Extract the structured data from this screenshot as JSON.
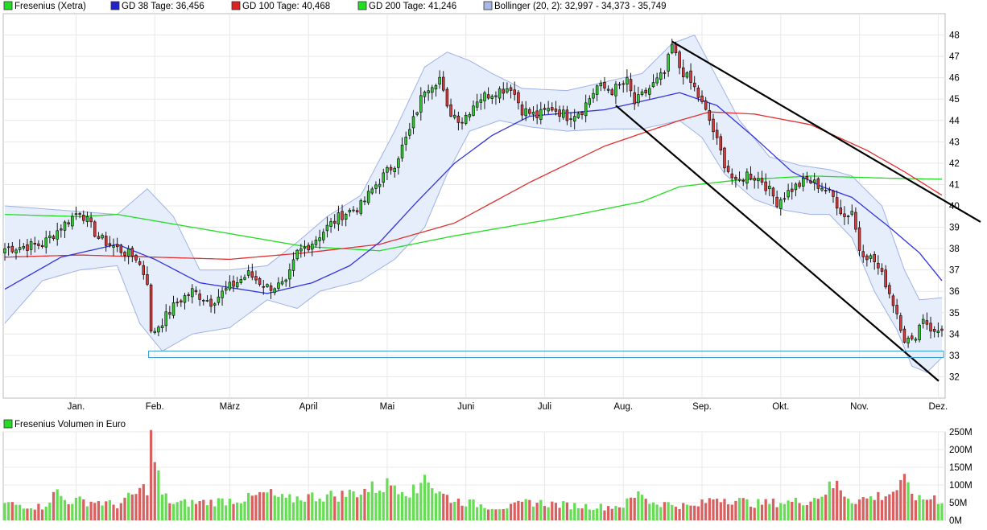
{
  "legend": {
    "price": "Fresenius (Xetra)",
    "gd38": "GD 38 Tage: 36,456",
    "gd100": "GD 100 Tage: 40,468",
    "gd200": "GD 200 Tage: 41,246",
    "bollinger": "Bollinger (20, 2): 32,997 - 34,373 - 35,749",
    "volume": "Fresenius Volumen in Euro"
  },
  "colors": {
    "up": "#2ecc2e",
    "down": "#d93a3a",
    "gd38": "#3333dd",
    "gd100": "#e03030",
    "gd200": "#22dd22",
    "band_fill": "#e6eefb",
    "band_line": "#9fb2e6",
    "support": "#3399cc"
  },
  "chart_data": [
    {
      "type": "candlestick",
      "title": "",
      "x_months": [
        "Jan.",
        "Feb.",
        "März",
        "April",
        "Mai",
        "Juni",
        "Juli",
        "Aug.",
        "Sep.",
        "Okt.",
        "Nov.",
        "Dez."
      ],
      "y_ticks": [
        32,
        33,
        34,
        35,
        36,
        37,
        38,
        39,
        40,
        41,
        42,
        43,
        44,
        45,
        46,
        47,
        48
      ],
      "ylim": [
        31,
        49
      ],
      "series_anchors": {
        "close": [
          [
            0,
            38.0
          ],
          [
            10,
            38.2
          ],
          [
            15,
            39.0
          ],
          [
            20,
            39.8
          ],
          [
            25,
            38.5
          ],
          [
            30,
            38.0
          ],
          [
            35,
            37.6
          ],
          [
            38,
            36.5
          ],
          [
            39,
            34.0
          ],
          [
            42,
            34.6
          ],
          [
            46,
            35.5
          ],
          [
            50,
            36.0
          ],
          [
            55,
            35.5
          ],
          [
            60,
            36.2
          ],
          [
            65,
            36.8
          ],
          [
            70,
            36.2
          ],
          [
            75,
            36.3
          ],
          [
            78,
            37.8
          ],
          [
            82,
            38.3
          ],
          [
            86,
            39.0
          ],
          [
            90,
            39.6
          ],
          [
            95,
            40.0
          ],
          [
            99,
            41.0
          ],
          [
            104,
            42.0
          ],
          [
            108,
            43.5
          ],
          [
            112,
            45.5
          ],
          [
            116,
            46.0
          ],
          [
            118,
            44.5
          ],
          [
            122,
            44.0
          ],
          [
            126,
            45.0
          ],
          [
            130,
            45.3
          ],
          [
            135,
            45.6
          ],
          [
            138,
            44.5
          ],
          [
            142,
            44.2
          ],
          [
            146,
            44.6
          ],
          [
            150,
            44.2
          ],
          [
            154,
            44.5
          ],
          [
            158,
            45.6
          ],
          [
            162,
            45.4
          ],
          [
            166,
            45.8
          ],
          [
            168,
            44.8
          ],
          [
            172,
            45.5
          ],
          [
            176,
            46.2
          ],
          [
            178,
            47.5
          ],
          [
            180,
            46.5
          ],
          [
            184,
            45.5
          ],
          [
            188,
            44.0
          ],
          [
            192,
            42.0
          ],
          [
            195,
            41.0
          ],
          [
            198,
            41.5
          ],
          [
            202,
            41.2
          ],
          [
            206,
            40.2
          ],
          [
            210,
            40.8
          ],
          [
            214,
            41.2
          ],
          [
            218,
            40.9
          ],
          [
            221,
            40.4
          ],
          [
            224,
            39.5
          ],
          [
            226,
            39.8
          ],
          [
            228,
            38.0
          ],
          [
            232,
            37.4
          ],
          [
            235,
            36.4
          ],
          [
            238,
            35.0
          ],
          [
            240,
            33.8
          ],
          [
            242,
            33.6
          ],
          [
            245,
            34.8
          ],
          [
            248,
            34.0
          ],
          [
            250,
            34.3
          ]
        ],
        "gd38": [
          [
            0,
            36.1
          ],
          [
            15,
            37.6
          ],
          [
            30,
            38.2
          ],
          [
            40,
            37.5
          ],
          [
            52,
            36.4
          ],
          [
            70,
            35.9
          ],
          [
            82,
            36.4
          ],
          [
            92,
            37.2
          ],
          [
            100,
            38.3
          ],
          [
            110,
            40.2
          ],
          [
            120,
            42.0
          ],
          [
            130,
            43.3
          ],
          [
            140,
            44.2
          ],
          [
            160,
            44.5
          ],
          [
            175,
            45.1
          ],
          [
            180,
            45.3
          ],
          [
            190,
            44.7
          ],
          [
            200,
            43.2
          ],
          [
            210,
            41.6
          ],
          [
            218,
            40.9
          ],
          [
            226,
            40.4
          ],
          [
            236,
            39.0
          ],
          [
            244,
            37.8
          ],
          [
            250,
            36.5
          ]
        ],
        "gd100": [
          [
            0,
            37.6
          ],
          [
            20,
            37.7
          ],
          [
            40,
            37.6
          ],
          [
            60,
            37.5
          ],
          [
            80,
            37.8
          ],
          [
            100,
            38.2
          ],
          [
            120,
            39.2
          ],
          [
            140,
            41.1
          ],
          [
            160,
            42.8
          ],
          [
            180,
            44.0
          ],
          [
            188,
            44.4
          ],
          [
            200,
            44.3
          ],
          [
            215,
            43.8
          ],
          [
            230,
            42.6
          ],
          [
            240,
            41.6
          ],
          [
            250,
            40.5
          ]
        ],
        "gd200": [
          [
            0,
            39.6
          ],
          [
            20,
            39.5
          ],
          [
            30,
            39.6
          ],
          [
            50,
            39.0
          ],
          [
            80,
            38.1
          ],
          [
            100,
            37.9
          ],
          [
            120,
            38.6
          ],
          [
            150,
            39.5
          ],
          [
            170,
            40.2
          ],
          [
            180,
            40.9
          ],
          [
            195,
            41.2
          ],
          [
            215,
            41.4
          ],
          [
            235,
            41.3
          ],
          [
            250,
            41.25
          ]
        ],
        "bb_upper": [
          [
            0,
            40.0
          ],
          [
            15,
            39.8
          ],
          [
            30,
            39.6
          ],
          [
            38,
            40.8
          ],
          [
            45,
            39.5
          ],
          [
            52,
            37.0
          ],
          [
            60,
            37.0
          ],
          [
            70,
            37.2
          ],
          [
            78,
            38.3
          ],
          [
            86,
            39.5
          ],
          [
            95,
            40.5
          ],
          [
            104,
            43.5
          ],
          [
            112,
            46.5
          ],
          [
            118,
            47.2
          ],
          [
            124,
            46.8
          ],
          [
            130,
            46.2
          ],
          [
            138,
            45.5
          ],
          [
            150,
            45.4
          ],
          [
            160,
            45.8
          ],
          [
            170,
            46.2
          ],
          [
            178,
            47.6
          ],
          [
            184,
            48.0
          ],
          [
            190,
            46.0
          ],
          [
            196,
            44.0
          ],
          [
            204,
            42.3
          ],
          [
            212,
            41.9
          ],
          [
            220,
            41.7
          ],
          [
            226,
            41.4
          ],
          [
            234,
            40.0
          ],
          [
            240,
            37.0
          ],
          [
            244,
            35.6
          ],
          [
            250,
            35.7
          ]
        ],
        "bb_lower": [
          [
            0,
            34.5
          ],
          [
            10,
            36.5
          ],
          [
            20,
            37.0
          ],
          [
            30,
            37.2
          ],
          [
            36,
            34.5
          ],
          [
            42,
            33.2
          ],
          [
            50,
            34.0
          ],
          [
            60,
            34.3
          ],
          [
            70,
            35.6
          ],
          [
            78,
            35.2
          ],
          [
            84,
            36.0
          ],
          [
            95,
            36.5
          ],
          [
            104,
            37.5
          ],
          [
            112,
            39.0
          ],
          [
            118,
            41.5
          ],
          [
            124,
            43.5
          ],
          [
            132,
            44.0
          ],
          [
            140,
            43.7
          ],
          [
            150,
            43.5
          ],
          [
            160,
            43.6
          ],
          [
            170,
            43.6
          ],
          [
            180,
            44.0
          ],
          [
            186,
            43.2
          ],
          [
            192,
            41.5
          ],
          [
            200,
            40.3
          ],
          [
            208,
            39.8
          ],
          [
            215,
            39.6
          ],
          [
            220,
            39.6
          ],
          [
            226,
            38.5
          ],
          [
            232,
            36.0
          ],
          [
            238,
            34.2
          ],
          [
            242,
            32.5
          ],
          [
            246,
            32.2
          ],
          [
            250,
            32.9
          ]
        ]
      },
      "gd38_last": 36.456,
      "gd100_last": 40.468,
      "gd200_last": 41.246,
      "bollinger_last": [
        32.997,
        34.373,
        35.749
      ],
      "annotations": {
        "upper_trendline": [
          [
            178,
            47.7
          ],
          [
            250,
            39.4
          ]
        ],
        "lower_trendline": [
          [
            163,
            44.7
          ],
          [
            242,
            31.8
          ]
        ],
        "support_box": [
          [
            39,
            33.2
          ],
          [
            250,
            32.9
          ]
        ]
      }
    },
    {
      "type": "bar",
      "title": "",
      "y_ticks": [
        "0M",
        "50M",
        "100M",
        "150M",
        "200M",
        "250M"
      ],
      "ylim": [
        0,
        250
      ],
      "value_anchors": [
        [
          0,
          50
        ],
        [
          10,
          40
        ],
        [
          14,
          85
        ],
        [
          16,
          60
        ],
        [
          25,
          55
        ],
        [
          30,
          45
        ],
        [
          38,
          100
        ],
        [
          39,
          235
        ],
        [
          42,
          75
        ],
        [
          45,
          50
        ],
        [
          55,
          55
        ],
        [
          65,
          65
        ],
        [
          70,
          80
        ],
        [
          75,
          60
        ],
        [
          80,
          70
        ],
        [
          90,
          75
        ],
        [
          100,
          100
        ],
        [
          104,
          110
        ],
        [
          108,
          90
        ],
        [
          110,
          80
        ],
        [
          112,
          160
        ],
        [
          114,
          100
        ],
        [
          116,
          80
        ],
        [
          120,
          60
        ],
        [
          130,
          40
        ],
        [
          135,
          40
        ],
        [
          140,
          55
        ],
        [
          150,
          45
        ],
        [
          160,
          40
        ],
        [
          165,
          45
        ],
        [
          170,
          85
        ],
        [
          172,
          55
        ],
        [
          180,
          45
        ],
        [
          184,
          40
        ],
        [
          190,
          70
        ],
        [
          195,
          60
        ],
        [
          200,
          50
        ],
        [
          210,
          55
        ],
        [
          215,
          60
        ],
        [
          218,
          80
        ],
        [
          220,
          95
        ],
        [
          222,
          105
        ],
        [
          226,
          60
        ],
        [
          230,
          65
        ],
        [
          236,
          80
        ],
        [
          240,
          110
        ],
        [
          244,
          60
        ],
        [
          248,
          70
        ],
        [
          250,
          55
        ]
      ]
    }
  ]
}
